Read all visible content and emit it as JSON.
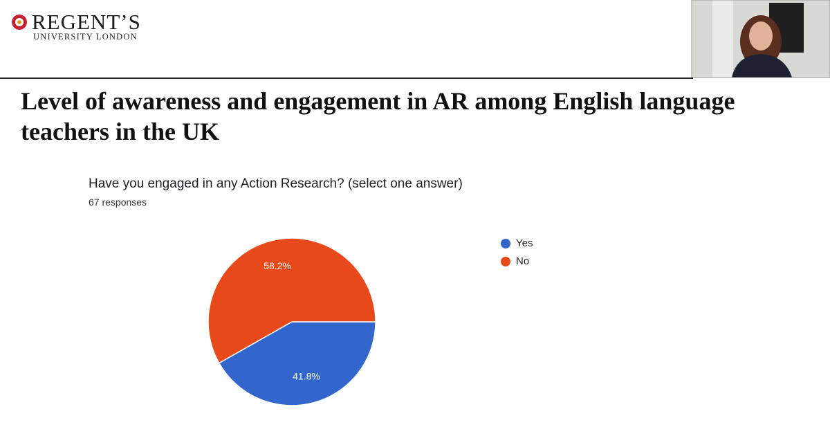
{
  "header": {
    "logo_name": "REGENT’S",
    "logo_sub": "UNIVERSITY LONDON"
  },
  "slide": {
    "title": "Level of awareness and engagement in AR among English language teachers in the UK"
  },
  "chart_data": {
    "type": "pie",
    "title": "Have you engaged in any Action Research? (select one answer)",
    "subtitle": "67 responses",
    "categories": [
      "Yes",
      "No"
    ],
    "values": [
      41.8,
      58.2
    ],
    "value_labels": [
      "41.8%",
      "58.2%"
    ],
    "colors": [
      "#3366cc",
      "#e8491b"
    ],
    "legend": "right"
  }
}
